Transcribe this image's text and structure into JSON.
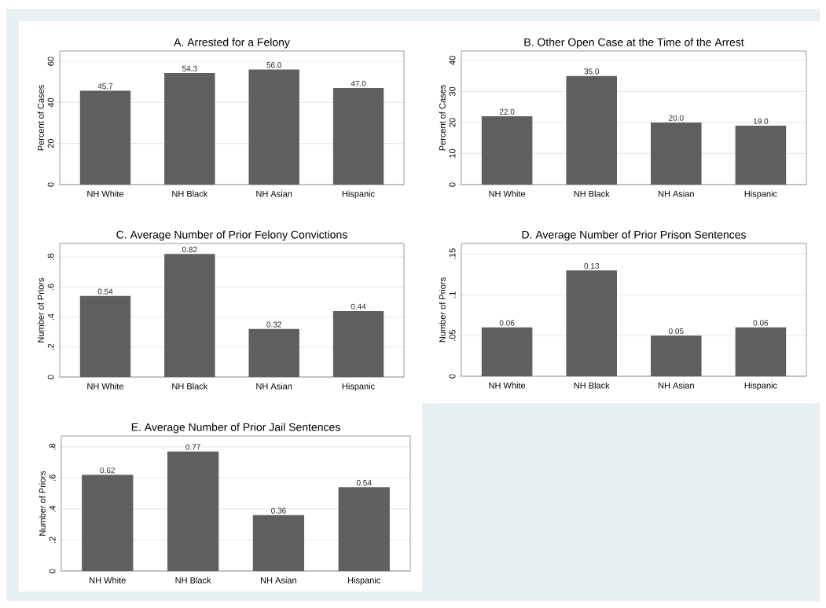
{
  "chart_data": [
    {
      "type": "bar",
      "title": "A. Arrested for a Felony",
      "ylabel": "Percent of Cases",
      "categories": [
        "NH White",
        "NH Black",
        "NH Asian",
        "Hispanic"
      ],
      "values": [
        45.7,
        54.3,
        56.0,
        47.0
      ],
      "value_labels": [
        "45.7",
        "54.3",
        "56.0",
        "47.0"
      ],
      "color": "#5f5f5f",
      "ylim": [
        0,
        65
      ],
      "yticks": [
        0,
        20,
        40,
        60
      ],
      "grid": "y"
    },
    {
      "type": "bar",
      "title": "B. Other Open Case at the Time of the Arrest",
      "ylabel": "Percent of Cases",
      "categories": [
        "NH White",
        "NH Black",
        "NH Asian",
        "Hispanic"
      ],
      "values": [
        22.0,
        35.0,
        20.0,
        19.0
      ],
      "value_labels": [
        "22.0",
        "35.0",
        "20.0",
        "19.0"
      ],
      "color": "#5f5f5f",
      "ylim": [
        0,
        43
      ],
      "yticks": [
        0,
        10,
        20,
        30,
        40
      ],
      "grid": "y"
    },
    {
      "type": "bar",
      "title": "C. Average Number of Prior Felony Convictions",
      "ylabel": "Number of Priors",
      "categories": [
        "NH White",
        "NH Black",
        "NH Asian",
        "Hispanic"
      ],
      "values": [
        0.54,
        0.82,
        0.32,
        0.44
      ],
      "value_labels": [
        "0.54",
        "0.82",
        "0.32",
        "0.44"
      ],
      "color": "#5f5f5f",
      "ylim": [
        0,
        0.89
      ],
      "yticks": [
        0,
        {
          "value": 0.2,
          "label": ".2"
        },
        {
          "value": 0.4,
          "label": ".4"
        },
        {
          "value": 0.6,
          "label": ".6"
        },
        {
          "value": 0.8,
          "label": ".8"
        }
      ],
      "grid": "y"
    },
    {
      "type": "bar",
      "title": "D. Average Number of Prior Prison Sentences",
      "ylabel": "Number of Priors",
      "categories": [
        "NH White",
        "NH Black",
        "NH Asian",
        "Hispanic"
      ],
      "values": [
        0.06,
        0.13,
        0.05,
        0.06
      ],
      "value_labels": [
        "0.06",
        "0.13",
        "0.05",
        "0.06"
      ],
      "color": "#5f5f5f",
      "ylim": [
        0,
        0.163
      ],
      "yticks": [
        0,
        {
          "value": 0.05,
          "label": ".05"
        },
        {
          "value": 0.1,
          "label": ".1"
        },
        {
          "value": 0.15,
          "label": ".15"
        }
      ],
      "grid": "y"
    },
    {
      "type": "bar",
      "title": "E. Average Number of Prior Jail Sentences",
      "ylabel": "Number of Priors",
      "categories": [
        "NH White",
        "NH Black",
        "NH Asian",
        "Hispanic"
      ],
      "values": [
        0.62,
        0.77,
        0.36,
        0.54
      ],
      "value_labels": [
        "0.62",
        "0.77",
        "0.36",
        "0.54"
      ],
      "color": "#5f5f5f",
      "ylim": [
        0,
        0.87
      ],
      "yticks": [
        0,
        {
          "value": 0.2,
          "label": ".2"
        },
        {
          "value": 0.4,
          "label": ".4"
        },
        {
          "value": 0.6,
          "label": ".6"
        },
        {
          "value": 0.8,
          "label": ".8"
        }
      ],
      "grid": "y"
    }
  ]
}
